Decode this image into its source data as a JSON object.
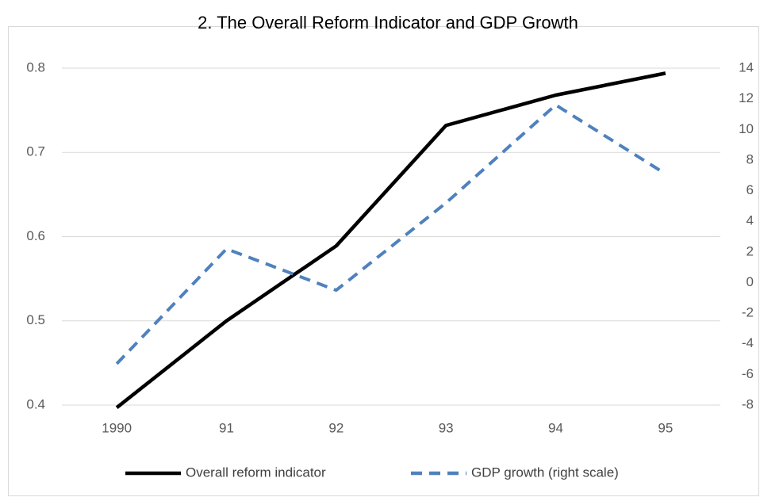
{
  "chart_data": {
    "type": "line",
    "title": "2. The Overall Reform Indicator and GDP Growth",
    "categories": [
      "1990",
      "91",
      "92",
      "93",
      "94",
      "95"
    ],
    "series": [
      {
        "name": "Overall reform indicator",
        "color": "#000000",
        "style": "solid",
        "values": [
          0.397,
          0.5,
          0.589,
          0.732,
          0.768,
          0.794
        ]
      },
      {
        "name": "GDP growth (right scale)",
        "color": "#4f81bd",
        "style": "dashed",
        "axis": "y2",
        "values": [
          -5.3,
          2.2,
          -0.5,
          5.2,
          11.6,
          7.1
        ]
      }
    ],
    "ylim": [
      0.4,
      0.8
    ],
    "yticks": [
      0.4,
      0.5,
      0.6,
      0.7,
      0.8
    ],
    "y2lim": [
      -8,
      14
    ],
    "y2ticks": [
      -8,
      -6,
      -4,
      -2,
      0,
      2,
      4,
      6,
      8,
      10,
      12,
      14
    ],
    "grid": true,
    "legend": "bottom"
  }
}
